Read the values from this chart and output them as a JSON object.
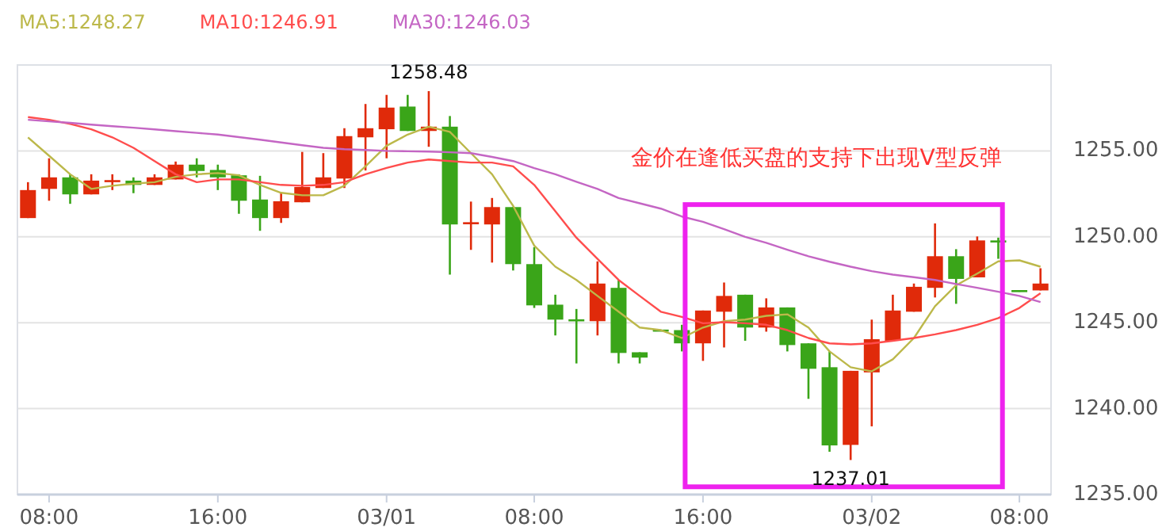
{
  "chart_data": {
    "type": "candlestick",
    "categories": [
      null,
      "08:00",
      null,
      null,
      null,
      null,
      null,
      null,
      null,
      "16:00",
      null,
      null,
      null,
      null,
      null,
      null,
      null,
      "03/01",
      null,
      null,
      null,
      null,
      null,
      null,
      "08:00",
      null,
      null,
      null,
      null,
      null,
      null,
      null,
      "16:00",
      null,
      null,
      null,
      null,
      null,
      null,
      null,
      "03/02",
      null,
      null,
      null,
      null,
      null,
      null,
      "08:00",
      null
    ],
    "ohlc": [
      [
        1251.09,
        1253.18,
        1251.09,
        1252.72
      ],
      [
        1252.79,
        1254.57,
        1252.1,
        1253.46
      ],
      [
        1253.46,
        1253.64,
        1251.92,
        1252.47
      ],
      [
        1252.47,
        1253.64,
        1252.47,
        1253.27
      ],
      [
        1253.2,
        1253.64,
        1252.72,
        1253.3
      ],
      [
        1253.27,
        1253.46,
        1252.54,
        1253.02
      ],
      [
        1253.02,
        1253.64,
        1253.02,
        1253.46
      ],
      [
        1253.34,
        1254.38,
        1253.34,
        1254.2
      ],
      [
        1254.2,
        1254.57,
        1253.46,
        1253.83
      ],
      [
        1253.89,
        1254.2,
        1252.72,
        1253.46
      ],
      [
        1253.58,
        1253.64,
        1251.34,
        1252.1
      ],
      [
        1252.17,
        1253.55,
        1250.35,
        1251.09
      ],
      [
        1251.09,
        1252.56,
        1250.81,
        1252.07
      ],
      [
        1252.01,
        1254.94,
        1252.01,
        1252.9
      ],
      [
        1252.84,
        1254.87,
        1252.84,
        1253.46
      ],
      [
        1253.39,
        1256.32,
        1252.84,
        1255.86
      ],
      [
        1255.79,
        1257.73,
        1253.86,
        1256.32
      ],
      [
        1256.26,
        1258.26,
        1254.57,
        1257.52
      ],
      [
        1257.58,
        1258.26,
        1256.16,
        1256.16
      ],
      [
        1256.16,
        1258.48,
        1255.24,
        1256.41
      ],
      [
        1256.41,
        1257.03,
        1247.8,
        1250.72
      ],
      [
        1250.78,
        1252.05,
        1249.24,
        1250.85
      ],
      [
        1250.72,
        1252.26,
        1248.5,
        1251.73
      ],
      [
        1251.73,
        1251.73,
        1248.04,
        1248.41
      ],
      [
        1248.41,
        1249.4,
        1245.86,
        1246.01
      ],
      [
        1246.05,
        1246.63,
        1244.26,
        1245.18
      ],
      [
        1245.2,
        1245.8,
        1242.63,
        1245.1
      ],
      [
        1245.09,
        1248.57,
        1244.26,
        1247.28
      ],
      [
        1247.03,
        1247.49,
        1242.63,
        1243.24
      ],
      [
        1243.28,
        1243.28,
        1242.63,
        1242.97
      ],
      [
        1244.6,
        1244.6,
        1244.5,
        1244.5
      ],
      [
        1244.57,
        1244.88,
        1243.33,
        1243.8
      ],
      [
        1243.8,
        1245.71,
        1242.78,
        1245.71
      ],
      [
        1245.64,
        1247.34,
        1243.56,
        1246.56
      ],
      [
        1246.63,
        1246.63,
        1243.95,
        1244.72
      ],
      [
        1244.72,
        1246.42,
        1244.48,
        1245.89
      ],
      [
        1245.89,
        1245.89,
        1243.33,
        1243.7
      ],
      [
        1243.8,
        1243.8,
        1240.57,
        1242.32
      ],
      [
        1242.41,
        1243.33,
        1237.49,
        1237.86
      ],
      [
        1237.89,
        1242.2,
        1237.01,
        1242.2
      ],
      [
        1242.11,
        1245.18,
        1238.97,
        1244.04
      ],
      [
        1243.95,
        1246.63,
        1243.95,
        1245.71
      ],
      [
        1245.64,
        1247.28,
        1245.64,
        1247.09
      ],
      [
        1247.03,
        1250.78,
        1246.47,
        1248.87
      ],
      [
        1248.87,
        1249.28,
        1246.1,
        1247.55
      ],
      [
        1247.64,
        1250.02,
        1247.64,
        1249.79
      ],
      [
        1249.79,
        1249.95,
        1248.72,
        1249.7
      ],
      [
        1246.9,
        1246.9,
        1246.8,
        1246.8
      ],
      [
        1246.88,
        1248.17,
        1246.88,
        1247.28
      ]
    ],
    "colors": [
      "#e02a0a",
      "#e02a0a",
      "#3aa519",
      "#e02a0a",
      "#e02a0a",
      "#3aa519",
      "#e02a0a",
      "#e02a0a",
      "#3aa519",
      "#3aa519",
      "#3aa519",
      "#3aa519",
      "#e02a0a",
      "#e02a0a",
      "#e02a0a",
      "#e02a0a",
      "#e02a0a",
      "#e02a0a",
      "#3aa519",
      "#e02a0a",
      "#3aa519",
      "#e02a0a",
      "#e02a0a",
      "#3aa519",
      "#3aa519",
      "#3aa519",
      "#3aa519",
      "#e02a0a",
      "#3aa519",
      "#3aa519",
      "#3aa519",
      "#3aa519",
      "#e02a0a",
      "#e02a0a",
      "#3aa519",
      "#e02a0a",
      "#3aa519",
      "#3aa519",
      "#3aa519",
      "#e02a0a",
      "#e02a0a",
      "#e02a0a",
      "#e02a0a",
      "#e02a0a",
      "#3aa519",
      "#e02a0a",
      "#3aa519",
      "#3aa519",
      "#e02a0a"
    ],
    "series": [
      {
        "type": "line",
        "name": "MA5:1248.27",
        "color": "#bcb84a",
        "values": [
          1255.79,
          1254.72,
          1253.64,
          1252.79,
          1252.97,
          1253.09,
          1253.18,
          1253.49,
          1253.64,
          1253.71,
          1253.58,
          1253.02,
          1252.56,
          1252.42,
          1252.42,
          1252.97,
          1254.1,
          1255.3,
          1255.95,
          1256.41,
          1256.11,
          1254.87,
          1253.64,
          1251.8,
          1249.49,
          1248.26,
          1247.49,
          1246.56,
          1245.64,
          1244.72,
          1244.57,
          1244.11,
          1244.72,
          1245.09,
          1245.18,
          1245.4,
          1245.49,
          1244.72,
          1243.33,
          1242.41,
          1242.17,
          1242.87,
          1244.11,
          1245.96,
          1247.18,
          1247.86,
          1248.57,
          1248.63,
          1248.26
        ]
      },
      {
        "type": "line",
        "name": "MA10:1246.91",
        "color": "#ff4d4d",
        "values": [
          1256.97,
          1256.81,
          1256.57,
          1256.26,
          1255.79,
          1255.18,
          1254.41,
          1253.64,
          1253.18,
          1253.34,
          1253.34,
          1253.18,
          1253.02,
          1252.97,
          1253.02,
          1253.18,
          1253.64,
          1254.01,
          1254.32,
          1254.5,
          1254.41,
          1254.32,
          1254.32,
          1254.1,
          1253.02,
          1251.49,
          1249.95,
          1248.72,
          1247.49,
          1246.56,
          1245.64,
          1245.34,
          1244.97,
          1245.03,
          1244.97,
          1244.88,
          1244.57,
          1244.11,
          1243.8,
          1243.74,
          1243.8,
          1243.95,
          1244.11,
          1244.32,
          1244.57,
          1244.88,
          1245.27,
          1245.86,
          1246.72
        ]
      },
      {
        "type": "line",
        "name": "MA30:1246.03",
        "color": "#c466c4",
        "values": [
          1256.81,
          1256.72,
          1256.63,
          1256.53,
          1256.44,
          1256.35,
          1256.25,
          1256.15,
          1256.05,
          1255.95,
          1255.8,
          1255.65,
          1255.49,
          1255.33,
          1255.18,
          1255.1,
          1255.05,
          1255.0,
          1254.98,
          1254.96,
          1254.92,
          1254.87,
          1254.65,
          1254.41,
          1254.0,
          1253.64,
          1253.2,
          1252.79,
          1252.26,
          1251.95,
          1251.64,
          1251.18,
          1250.87,
          1250.45,
          1250.0,
          1249.65,
          1249.25,
          1248.87,
          1248.55,
          1248.26,
          1248.0,
          1247.8,
          1247.65,
          1247.49,
          1247.25,
          1247.03,
          1246.8,
          1246.56,
          1246.2
        ]
      }
    ],
    "ylim": [
      1235,
      1260
    ],
    "yticks": [
      {
        "value": 1235,
        "label": "1235.00"
      },
      {
        "value": 1240,
        "label": "1240.00"
      },
      {
        "value": 1245,
        "label": "1245.00"
      },
      {
        "value": 1250,
        "label": "1250.00"
      },
      {
        "value": 1255,
        "label": "1255.00"
      }
    ],
    "grid": "y",
    "legend": "top left",
    "annotations": [
      "金价在逢低买盘的支持下出现V型反弹",
      {
        "text": "1258.48",
        "y": 1258.48
      },
      {
        "text": "1237.01",
        "y": 1237.01
      }
    ]
  }
}
